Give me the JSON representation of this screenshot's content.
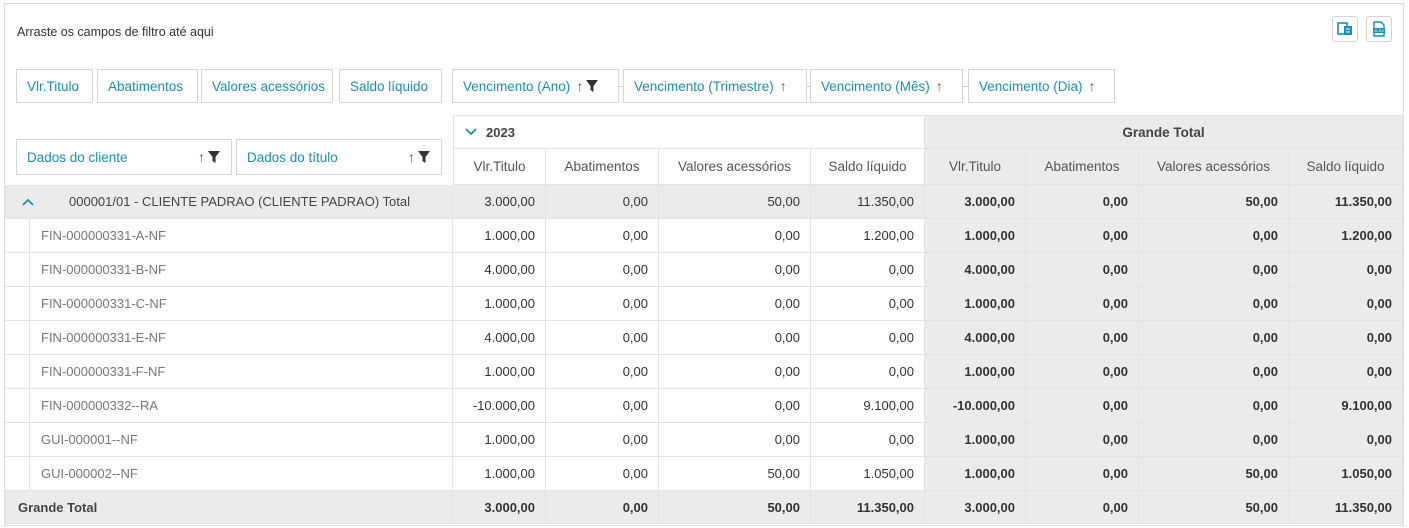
{
  "filter_area": {
    "hint": "Arraste os campos de filtro até aqui"
  },
  "toolbar": {
    "icons": [
      "column-chooser-icon",
      "export-excel-icon"
    ]
  },
  "data_fields": [
    "Vlr.Titulo",
    "Abatimentos",
    "Valores acessórios",
    "Saldo líquido"
  ],
  "column_fields": [
    {
      "label": "Vencimento (Ano)",
      "has_filter": true
    },
    {
      "label": "Vencimento (Trimestre)",
      "has_filter": false
    },
    {
      "label": "Vencimento (Mês)",
      "has_filter": false
    },
    {
      "label": "Vencimento (Dia)",
      "has_filter": false
    }
  ],
  "row_fields": [
    {
      "label": "Dados do cliente",
      "has_filter": true
    },
    {
      "label": "Dados do título",
      "has_filter": true
    }
  ],
  "column_groups": {
    "year": "2023",
    "grand_total": "Grande Total"
  },
  "measures": [
    "Vlr.Titulo",
    "Abatimentos",
    "Valores acessórios",
    "Saldo líquido"
  ],
  "client_row": {
    "label": "000001/01 - CLIENTE PADRAO (CLIENTE PADRAO) Total",
    "values": [
      "3.000,00",
      "0,00",
      "50,00",
      "11.350,00"
    ],
    "totals": [
      "3.000,00",
      "0,00",
      "50,00",
      "11.350,00"
    ]
  },
  "rows": [
    {
      "label": "FIN-000000331-A-NF",
      "values": [
        "1.000,00",
        "0,00",
        "0,00",
        "1.200,00"
      ],
      "totals": [
        "1.000,00",
        "0,00",
        "0,00",
        "1.200,00"
      ]
    },
    {
      "label": "FIN-000000331-B-NF",
      "values": [
        "4.000,00",
        "0,00",
        "0,00",
        "0,00"
      ],
      "totals": [
        "4.000,00",
        "0,00",
        "0,00",
        "0,00"
      ]
    },
    {
      "label": "FIN-000000331-C-NF",
      "values": [
        "1.000,00",
        "0,00",
        "0,00",
        "0,00"
      ],
      "totals": [
        "1.000,00",
        "0,00",
        "0,00",
        "0,00"
      ]
    },
    {
      "label": "FIN-000000331-E-NF",
      "values": [
        "4.000,00",
        "0,00",
        "0,00",
        "0,00"
      ],
      "totals": [
        "4.000,00",
        "0,00",
        "0,00",
        "0,00"
      ]
    },
    {
      "label": "FIN-000000331-F-NF",
      "values": [
        "1.000,00",
        "0,00",
        "0,00",
        "0,00"
      ],
      "totals": [
        "1.000,00",
        "0,00",
        "0,00",
        "0,00"
      ]
    },
    {
      "label": "FIN-000000332--RA",
      "values": [
        "-10.000,00",
        "0,00",
        "0,00",
        "9.100,00"
      ],
      "totals": [
        "-10.000,00",
        "0,00",
        "0,00",
        "9.100,00"
      ]
    },
    {
      "label": "GUI-000001--NF",
      "values": [
        "1.000,00",
        "0,00",
        "0,00",
        "0,00"
      ],
      "totals": [
        "1.000,00",
        "0,00",
        "0,00",
        "0,00"
      ]
    },
    {
      "label": "GUI-000002--NF",
      "values": [
        "1.000,00",
        "0,00",
        "50,00",
        "1.050,00"
      ],
      "totals": [
        "1.000,00",
        "0,00",
        "50,00",
        "1.050,00"
      ]
    }
  ],
  "grand_total_row": {
    "label": "Grande Total",
    "values": [
      "3.000,00",
      "0,00",
      "50,00",
      "11.350,00"
    ],
    "totals": [
      "3.000,00",
      "0,00",
      "50,00",
      "11.350,00"
    ]
  }
}
